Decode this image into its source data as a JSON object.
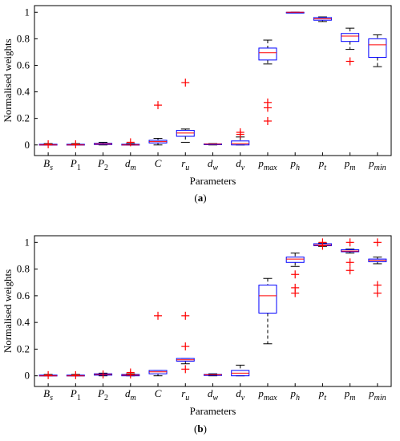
{
  "chart_data": [
    {
      "type": "box",
      "panel_label": "(a)",
      "xlabel": "Parameters",
      "ylabel": "Normalised weights",
      "ylim": [
        -0.08,
        1.05
      ],
      "yticks": [
        0,
        0.2,
        0.4,
        0.6,
        0.8,
        1
      ],
      "categories": [
        {
          "base": "B",
          "sub": "s"
        },
        {
          "base": "P",
          "sub": "1"
        },
        {
          "base": "P",
          "sub": "2"
        },
        {
          "base": "d",
          "sub": "m"
        },
        {
          "base": "C",
          "sub": ""
        },
        {
          "base": "r",
          "sub": "u"
        },
        {
          "base": "d",
          "sub": "w"
        },
        {
          "base": "d",
          "sub": "v"
        },
        {
          "base": "p",
          "sub": "max"
        },
        {
          "base": "p",
          "sub": "h"
        },
        {
          "base": "p",
          "sub": "t"
        },
        {
          "base": "p",
          "sub": "m"
        },
        {
          "base": "p",
          "sub": "min"
        }
      ],
      "boxes": [
        {
          "whisker_low": 0.0,
          "q1": 0.0,
          "median": 0.0,
          "q3": 0.005,
          "whisker_high": 0.01,
          "outliers": [
            0.005
          ]
        },
        {
          "whisker_low": 0.0,
          "q1": 0.0,
          "median": 0.0,
          "q3": 0.005,
          "whisker_high": 0.01,
          "outliers": [
            0.005
          ]
        },
        {
          "whisker_low": 0.0,
          "q1": 0.003,
          "median": 0.007,
          "q3": 0.012,
          "whisker_high": 0.02,
          "outliers": []
        },
        {
          "whisker_low": 0.0,
          "q1": 0.0,
          "median": 0.0,
          "q3": 0.005,
          "whisker_high": 0.01,
          "outliers": [
            0.02
          ]
        },
        {
          "whisker_low": 0.0,
          "q1": 0.015,
          "median": 0.025,
          "q3": 0.035,
          "whisker_high": 0.05,
          "outliers": [
            0.3
          ]
        },
        {
          "whisker_low": 0.02,
          "q1": 0.065,
          "median": 0.09,
          "q3": 0.11,
          "whisker_high": 0.12,
          "outliers": [
            0.47
          ]
        },
        {
          "whisker_low": 0.0,
          "q1": 0.003,
          "median": 0.006,
          "q3": 0.008,
          "whisker_high": 0.01,
          "outliers": []
        },
        {
          "whisker_low": 0.0,
          "q1": 0.0,
          "median": 0.01,
          "q3": 0.03,
          "whisker_high": 0.06,
          "outliers": [
            0.08,
            0.095
          ]
        },
        {
          "whisker_low": 0.61,
          "q1": 0.64,
          "median": 0.695,
          "q3": 0.73,
          "whisker_high": 0.79,
          "outliers": [
            0.32,
            0.28,
            0.18
          ]
        },
        {
          "whisker_low": 1.0,
          "q1": 1.0,
          "median": 1.0,
          "q3": 1.0,
          "whisker_high": 1.0,
          "outliers": []
        },
        {
          "whisker_low": 0.93,
          "q1": 0.94,
          "median": 0.95,
          "q3": 0.96,
          "whisker_high": 0.965,
          "outliers": []
        },
        {
          "whisker_low": 0.72,
          "q1": 0.78,
          "median": 0.82,
          "q3": 0.84,
          "whisker_high": 0.88,
          "outliers": [
            0.63
          ]
        },
        {
          "whisker_low": 0.59,
          "q1": 0.66,
          "median": 0.755,
          "q3": 0.8,
          "whisker_high": 0.83,
          "outliers": []
        }
      ]
    },
    {
      "type": "box",
      "panel_label": "(b)",
      "xlabel": "Parameters",
      "ylabel": "Normalised weights",
      "ylim": [
        -0.08,
        1.05
      ],
      "yticks": [
        0,
        0.2,
        0.4,
        0.6,
        0.8,
        1
      ],
      "categories": [
        {
          "base": "B",
          "sub": "s"
        },
        {
          "base": "P",
          "sub": "1"
        },
        {
          "base": "P",
          "sub": "2"
        },
        {
          "base": "d",
          "sub": "m"
        },
        {
          "base": "C",
          "sub": ""
        },
        {
          "base": "r",
          "sub": "u"
        },
        {
          "base": "d",
          "sub": "w"
        },
        {
          "base": "d",
          "sub": "v"
        },
        {
          "base": "p",
          "sub": "max"
        },
        {
          "base": "p",
          "sub": "h"
        },
        {
          "base": "p",
          "sub": "t"
        },
        {
          "base": "p",
          "sub": "m"
        },
        {
          "base": "p",
          "sub": "min"
        }
      ],
      "boxes": [
        {
          "whisker_low": 0.0,
          "q1": 0.0,
          "median": 0.0,
          "q3": 0.005,
          "whisker_high": 0.01,
          "outliers": [
            0.005
          ]
        },
        {
          "whisker_low": 0.0,
          "q1": 0.0,
          "median": 0.0,
          "q3": 0.005,
          "whisker_high": 0.01,
          "outliers": [
            0.005
          ]
        },
        {
          "whisker_low": 0.0,
          "q1": 0.005,
          "median": 0.01,
          "q3": 0.015,
          "whisker_high": 0.02,
          "outliers": [
            0.01
          ]
        },
        {
          "whisker_low": 0.0,
          "q1": 0.0,
          "median": 0.005,
          "q3": 0.01,
          "whisker_high": 0.015,
          "outliers": [
            0.01,
            0.025
          ]
        },
        {
          "whisker_low": 0.0,
          "q1": 0.015,
          "median": 0.03,
          "q3": 0.04,
          "whisker_high": 0.04,
          "outliers": [
            0.45
          ]
        },
        {
          "whisker_low": 0.09,
          "q1": 0.11,
          "median": 0.12,
          "q3": 0.13,
          "whisker_high": 0.13,
          "outliers": [
            0.45,
            0.22,
            0.05
          ]
        },
        {
          "whisker_low": 0.0,
          "q1": 0.003,
          "median": 0.007,
          "q3": 0.01,
          "whisker_high": 0.015,
          "outliers": []
        },
        {
          "whisker_low": 0.0,
          "q1": 0.0,
          "median": 0.02,
          "q3": 0.04,
          "whisker_high": 0.08,
          "outliers": []
        },
        {
          "whisker_low": 0.24,
          "q1": 0.47,
          "median": 0.6,
          "q3": 0.68,
          "whisker_high": 0.73,
          "outliers": []
        },
        {
          "whisker_low": 0.82,
          "q1": 0.85,
          "median": 0.875,
          "q3": 0.89,
          "whisker_high": 0.92,
          "outliers": [
            0.76,
            0.66,
            0.62
          ]
        },
        {
          "whisker_low": 0.97,
          "q1": 0.975,
          "median": 0.98,
          "q3": 0.99,
          "whisker_high": 0.995,
          "outliers": [
            0.975,
            1.0
          ]
        },
        {
          "whisker_low": 0.92,
          "q1": 0.93,
          "median": 0.935,
          "q3": 0.945,
          "whisker_high": 0.95,
          "outliers": [
            1.0,
            0.85,
            0.79
          ]
        },
        {
          "whisker_low": 0.84,
          "q1": 0.855,
          "median": 0.865,
          "q3": 0.875,
          "whisker_high": 0.89,
          "outliers": [
            1.0,
            0.68,
            0.62
          ]
        }
      ]
    }
  ],
  "colors": {
    "box": "#0000ff",
    "median": "#ff0000",
    "outlier": "#ff0000",
    "whisker": "#000000",
    "axis": "#000000"
  }
}
